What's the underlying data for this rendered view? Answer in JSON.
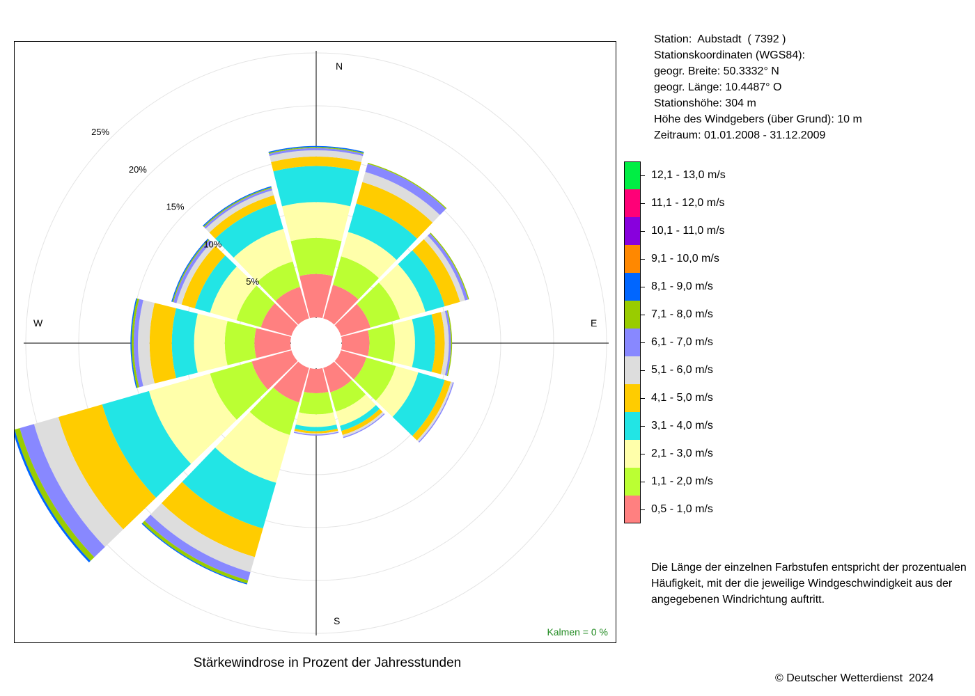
{
  "station": {
    "line1": "Station:  Aubstadt  ( 7392 )",
    "line2": "Stationskoordinaten (WGS84):",
    "line3": "geogr. Breite: 50.3332° N",
    "line4": "geogr. Länge: 10.4487° O",
    "line5": "Stationshöhe: 304 m",
    "line6": "Höhe des Windgebers (über Grund): 10 m",
    "line7": "Zeitraum: 01.01.2008 - 31.12.2009"
  },
  "legend": [
    {
      "label": "12,1 - 13,0 m/s",
      "color": "#00ee44"
    },
    {
      "label": "11,1 - 12,0 m/s",
      "color": "#ff0077"
    },
    {
      "label": "10,1 - 11,0 m/s",
      "color": "#8800dd"
    },
    {
      "label": "9,1 - 10,0 m/s",
      "color": "#ff8800"
    },
    {
      "label": "8,1 - 9,0 m/s",
      "color": "#0066ff"
    },
    {
      "label": "7,1 - 8,0 m/s",
      "color": "#99cc00"
    },
    {
      "label": "6,1 - 7,0 m/s",
      "color": "#8888ff"
    },
    {
      "label": "5,1 - 6,0 m/s",
      "color": "#dddddd"
    },
    {
      "label": "4,1 - 5,0 m/s",
      "color": "#ffcc00"
    },
    {
      "label": "3,1 - 4,0 m/s",
      "color": "#22e5e5"
    },
    {
      "label": "2,1 - 3,0 m/s",
      "color": "#ffffaa"
    },
    {
      "label": "1,1 - 2,0 m/s",
      "color": "#bbff33"
    },
    {
      "label": "0,5 - 1,0 m/s",
      "color": "#ff8080"
    }
  ],
  "explanation": "Die Länge der einzelnen Farbstufen entspricht der prozentualen Häufigkeit, mit der die jeweilige Windgeschwindigkeit aus der angegebenen Windrichtung auftritt.",
  "title": "Stärkewindrose in Prozent der Jahresstunden",
  "copyright": "© Deutscher Wetterdienst  2024",
  "calm_label": "Kalmen  =  0 %",
  "compass": {
    "north": "N",
    "east": "E",
    "south": "S",
    "west": "W"
  },
  "chart_data": {
    "type": "wind-rose",
    "title": "Stärkewindrose in Prozent der Jahresstunden",
    "unit": "%",
    "radial_ticks": [
      5,
      10,
      15,
      20,
      25
    ],
    "radial_tick_labels": [
      "5%",
      "10%",
      "15%",
      "20%",
      "25%"
    ],
    "radial_max": 25,
    "calm_percent": 0,
    "speed_classes_m_s": [
      "0,5 - 1,0",
      "1,1 - 2,0",
      "2,1 - 3,0",
      "3,1 - 4,0",
      "4,1 - 5,0",
      "5,1 - 6,0",
      "6,1 - 7,0",
      "7,1 - 8,0",
      "8,1 - 9,0",
      "9,1 - 10,0",
      "10,1 - 11,0",
      "11,1 - 12,0",
      "12,1 - 13,0"
    ],
    "series_colors": [
      "#ff8080",
      "#bbff33",
      "#ffffaa",
      "#22e5e5",
      "#ffcc00",
      "#dddddd",
      "#8888ff",
      "#99cc00",
      "#0066ff",
      "#ff8800",
      "#8800dd",
      "#ff0077",
      "#00ee44"
    ],
    "directions_deg": [
      0,
      30,
      60,
      90,
      120,
      150,
      180,
      210,
      240,
      270,
      300,
      330
    ],
    "cumulative_percent": [
      [
        4.1,
        7.5,
        10.9,
        14.3,
        15.2,
        15.8,
        16.0,
        16.1,
        16.2,
        16.2,
        16.2,
        16.2,
        16.2
      ],
      [
        3.3,
        6.1,
        8.5,
        11.3,
        13.4,
        14.4,
        15.2,
        15.3,
        15.3,
        15.3,
        15.3,
        15.3,
        15.3
      ],
      [
        2.9,
        5.8,
        8.3,
        10.2,
        11.7,
        12.2,
        12.5,
        12.6,
        12.6,
        12.6,
        12.6,
        12.6,
        12.6
      ],
      [
        2.6,
        5.0,
        6.9,
        8.8,
        9.7,
        10.1,
        10.3,
        10.4,
        10.4,
        10.4,
        10.4,
        10.4,
        10.4
      ],
      [
        2.5,
        5.4,
        7.6,
        10.2,
        10.8,
        11.0,
        11.1,
        11.1,
        11.1,
        11.1,
        11.1,
        11.1,
        11.1
      ],
      [
        2.4,
        4.3,
        5.7,
        6.2,
        6.6,
        6.8,
        6.9,
        6.9,
        6.9,
        6.9,
        6.9,
        6.9,
        6.9
      ],
      [
        2.3,
        4.3,
        5.5,
        5.9,
        6.1,
        6.2,
        6.3,
        6.3,
        6.3,
        6.3,
        6.3,
        6.3,
        6.3
      ],
      [
        3.4,
        6.6,
        11.3,
        15.8,
        18.6,
        20.1,
        20.9,
        21.2,
        21.3,
        21.3,
        21.3,
        21.3,
        21.3
      ],
      [
        3.9,
        8.0,
        14.0,
        18.6,
        22.9,
        25.3,
        26.7,
        27.2,
        27.4,
        27.4,
        27.4,
        27.4,
        27.4
      ],
      [
        3.4,
        6.2,
        9.1,
        11.2,
        13.3,
        14.4,
        14.8,
        15.0,
        15.1,
        15.1,
        15.1,
        15.1,
        15.1
      ],
      [
        3.0,
        5.4,
        8.0,
        9.5,
        10.8,
        11.3,
        11.6,
        11.7,
        11.8,
        11.8,
        11.8,
        11.8,
        11.8
      ],
      [
        3.1,
        5.6,
        8.8,
        11.3,
        12.1,
        12.6,
        12.8,
        12.9,
        13.0,
        13.0,
        13.0,
        13.0,
        13.0
      ]
    ]
  }
}
